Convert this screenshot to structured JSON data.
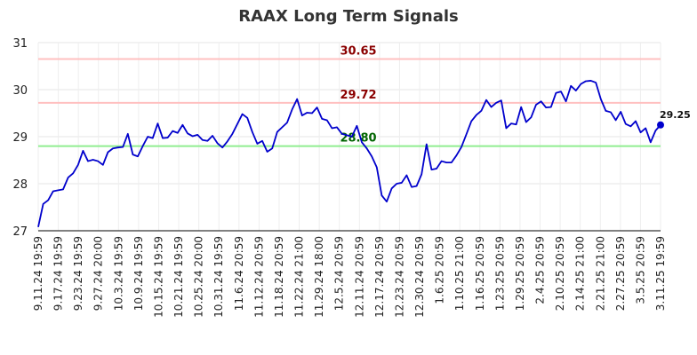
{
  "chart_data": {
    "type": "line",
    "title": "RAAX Long Term Signals",
    "ylim": [
      27,
      31
    ],
    "yticks": [
      27,
      28,
      29,
      30,
      31
    ],
    "x_tick_labels": [
      "9.11.24 19:59",
      "9.17.24 19:59",
      "9.23.24 19:59",
      "9.27.24 20:00",
      "10.3.24 19:59",
      "10.9.24 19:59",
      "10.15.24 19:59",
      "10.21.24 19:59",
      "10.25.24 20:00",
      "10.31.24 19:59",
      "11.6.24 20:59",
      "11.12.24 20:59",
      "11.18.24 20:59",
      "11.22.24 21:00",
      "11.29.24 18:00",
      "12.5.24 20:59",
      "12.11.24 20:59",
      "12.17.24 20:59",
      "12.23.24 20:59",
      "12.30.24 20:59",
      "1.6.25 20:59",
      "1.10.25 21:00",
      "1.16.25 20:59",
      "1.23.25 20:59",
      "1.29.25 20:59",
      "2.4.25 20:59",
      "2.10.25 20:59",
      "2.14.25 21:00",
      "2.21.25 21:00",
      "2.27.25 20:59",
      "3.5.25 20:59",
      "3.11.25 19:59"
    ],
    "values": [
      27.08,
      27.57,
      27.65,
      27.84,
      27.86,
      27.88,
      28.13,
      28.22,
      28.4,
      28.7,
      28.48,
      28.51,
      28.48,
      28.4,
      28.67,
      28.75,
      28.77,
      28.78,
      29.06,
      28.62,
      28.58,
      28.8,
      29.0,
      28.97,
      29.28,
      28.97,
      28.98,
      29.12,
      29.08,
      29.25,
      29.07,
      29.01,
      29.04,
      28.93,
      28.91,
      29.02,
      28.86,
      28.77,
      28.9,
      29.06,
      29.27,
      29.48,
      29.4,
      29.1,
      28.85,
      28.91,
      28.68,
      28.75,
      29.1,
      29.2,
      29.3,
      29.58,
      29.8,
      29.45,
      29.51,
      29.5,
      29.62,
      29.38,
      29.35,
      29.18,
      29.2,
      29.06,
      29.03,
      29.0,
      29.23,
      28.88,
      28.75,
      28.58,
      28.35,
      27.75,
      27.62,
      27.9,
      28.0,
      28.02,
      28.18,
      27.93,
      27.95,
      28.2,
      28.84,
      28.3,
      28.32,
      28.48,
      28.45,
      28.45,
      28.6,
      28.78,
      29.05,
      29.33,
      29.46,
      29.55,
      29.78,
      29.63,
      29.72,
      29.77,
      29.18,
      29.28,
      29.26,
      29.63,
      29.31,
      29.41,
      29.68,
      29.75,
      29.62,
      29.63,
      29.93,
      29.96,
      29.75,
      30.08,
      29.98,
      30.12,
      30.18,
      30.19,
      30.15,
      29.8,
      29.55,
      29.52,
      29.35,
      29.53,
      29.27,
      29.22,
      29.33,
      29.09,
      29.18,
      28.88,
      29.13,
      29.25
    ],
    "reference_lines": [
      {
        "value": 30.65,
        "label": "30.65",
        "line_color": "#ffc0c0",
        "label_color": "#8b0000"
      },
      {
        "value": 29.72,
        "label": "29.72",
        "line_color": "#ffc0c0",
        "label_color": "#8b0000"
      },
      {
        "value": 28.8,
        "label": "28.80",
        "line_color": "#90ee90",
        "label_color": "#006400"
      }
    ],
    "last_value_label": "29.25",
    "line_color": "#0000cc",
    "grid": true,
    "legend": "none"
  }
}
